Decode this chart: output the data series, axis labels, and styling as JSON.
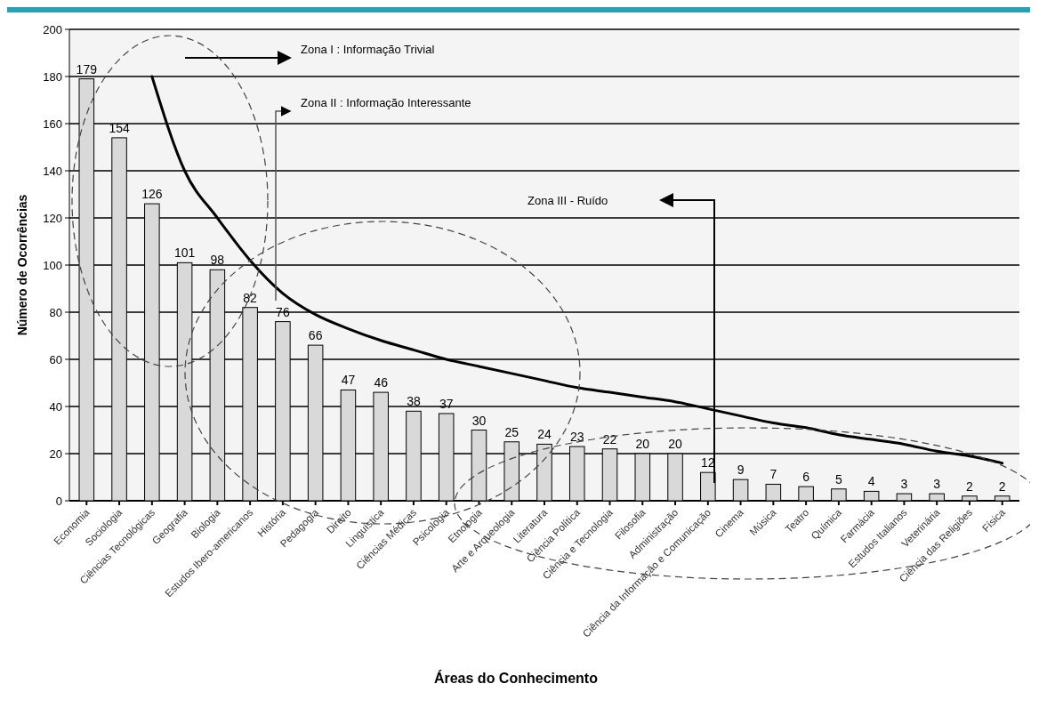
{
  "chart_data": {
    "type": "bar",
    "xlabel": "Áreas do Conhecimento",
    "ylabel": "Número de Ocorrências",
    "categories": [
      "Economia",
      "Sociologia",
      "Ciências Tecnológicas",
      "Geografia",
      "Biologia",
      "Estudos Ibero-americanos",
      "História",
      "Pedagogia",
      "Direito",
      "Linguística",
      "Ciências Médicas",
      "Psicologia",
      "Etnologia",
      "Arte e Arqueologia",
      "Literatura",
      "Ciência Política",
      "Ciência e Tecnologia",
      "Filosofia",
      "Administração",
      "Ciência da Informação e Comunicação",
      "Cinema",
      "Música",
      "Teatro",
      "Química",
      "Farmácia",
      "Estudos Italianos",
      "Veterinária",
      "Ciência das Religiões",
      "Física"
    ],
    "series": [
      {
        "color": "#d9d9d9",
        "values": [
          179,
          154,
          126,
          101,
          98,
          82,
          76,
          66,
          47,
          46,
          38,
          37,
          30,
          25,
          24,
          23,
          22,
          20,
          20,
          12,
          9,
          7,
          6,
          5,
          4,
          3,
          3,
          2,
          2
        ],
        "value_labels": [
          "179",
          "154",
          "126",
          "101",
          "98",
          "82",
          "76",
          "66",
          "47",
          "46",
          "38",
          "37",
          "30",
          "25",
          "24",
          "23",
          "22",
          "20",
          "20",
          "12",
          "9",
          "7",
          "6",
          "5",
          "4",
          "3",
          "3",
          "2",
          "2"
        ]
      },
      {
        "type": "line",
        "color": "#000000",
        "values": [
          null,
          null,
          180,
          140,
          120,
          102,
          88,
          79,
          73,
          68,
          64,
          60,
          57,
          54,
          51,
          48,
          46,
          44,
          42,
          39,
          36,
          33,
          31,
          28,
          26,
          24,
          21,
          19,
          16
        ]
      }
    ],
    "ylim": [
      0,
      200
    ],
    "yticks": [
      0,
      20,
      40,
      60,
      80,
      100,
      120,
      140,
      160,
      180,
      200
    ],
    "grid": "y",
    "annotations": [
      "Zona I : Informação Trivial",
      "Zona II : Informação Interessante",
      "Zona III - Ruído"
    ]
  }
}
